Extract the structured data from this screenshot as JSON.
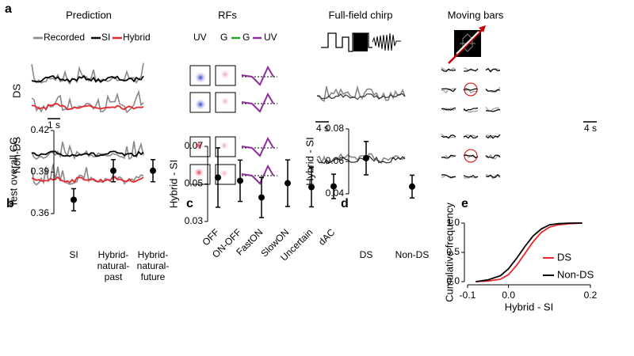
{
  "panel_a": {
    "label": "a",
    "titles": [
      "Prediction",
      "RFs",
      "Full-field chirp",
      "Moving bars"
    ],
    "legend": [
      "Recorded",
      "SI",
      "Hybrid"
    ],
    "rf_legend": [
      "UV",
      "G",
      "G",
      "UV"
    ],
    "rows": [
      "DS",
      "Non-DS"
    ],
    "scale_bars": [
      "1 s",
      "4 s",
      "4 s"
    ]
  },
  "chart_data": [
    {
      "type": "errorbar",
      "label": "b",
      "ylabel": "Test overall CC",
      "categories": [
        "SI",
        [
          "Hybrid-",
          "natural-",
          "past"
        ],
        [
          "Hybrid-",
          "natural-",
          "future"
        ]
      ],
      "values": [
        0.37,
        0.391,
        0.391
      ],
      "errors": [
        0.008,
        0.008,
        0.008
      ],
      "color": "#000000",
      "ylim": [
        0.36,
        0.42
      ],
      "yticks": [
        0.36,
        0.39,
        0.42
      ]
    },
    {
      "type": "errorbar",
      "label": "c",
      "ylabel": "Hybrid - SI",
      "categories": [
        "OFF",
        "ON-OFF",
        "FastON",
        "SlowON",
        "Uncertain",
        "dAC"
      ],
      "values": [
        0.0534,
        0.0517,
        0.0428,
        0.0504,
        0.0483,
        0.0487
      ],
      "errors": [
        0.0158,
        0.011,
        0.0107,
        0.0124,
        0.0105,
        0.0065
      ],
      "color": "#000000",
      "ylim": [
        0.03,
        0.07
      ],
      "yticks": [
        0.03,
        0.05,
        0.07
      ]
    },
    {
      "type": "errorbar",
      "label": "d",
      "ylabel": "Hybrid - SI",
      "categories": [
        "DS",
        "Non-DS"
      ],
      "values": [
        0.062,
        0.0445
      ],
      "errors": [
        0.0103,
        0.007
      ],
      "color": "#000000",
      "ylim": [
        0.04,
        0.08
      ],
      "yticks": [
        0.04,
        0.06,
        0.08
      ]
    },
    {
      "type": "line",
      "label": "e",
      "ylabel": "Cumulative frequency",
      "xlabel": "Hybrid - SI",
      "series": [
        {
          "name": "DS",
          "color": "#e8262b",
          "x": [
            -0.08,
            -0.05,
            -0.02,
            0,
            0.02,
            0.04,
            0.06,
            0.08,
            0.1,
            0.12,
            0.15,
            0.18
          ],
          "values": [
            0,
            0.01,
            0.04,
            0.12,
            0.28,
            0.48,
            0.68,
            0.84,
            0.93,
            0.97,
            0.99,
            1.0
          ]
        },
        {
          "name": "Non-DS",
          "color": "#000000",
          "x": [
            -0.08,
            -0.05,
            -0.02,
            0,
            0.02,
            0.04,
            0.06,
            0.08,
            0.1,
            0.12,
            0.15,
            0.18
          ],
          "values": [
            0,
            0.03,
            0.1,
            0.22,
            0.4,
            0.6,
            0.78,
            0.9,
            0.97,
            0.99,
            1.0,
            1.0
          ]
        }
      ],
      "xlim": [
        -0.1,
        0.2
      ],
      "xticks": [
        -0.1,
        {
          "value": 0,
          "label": "0.0"
        },
        0.2
      ],
      "ylim": [
        0,
        1
      ],
      "yticks": [
        {
          "value": 0,
          "label": "0.0"
        },
        {
          "value": 0.5,
          "label": "0.5"
        },
        {
          "value": 1,
          "label": "1.0"
        }
      ],
      "legend": "lower right"
    }
  ]
}
